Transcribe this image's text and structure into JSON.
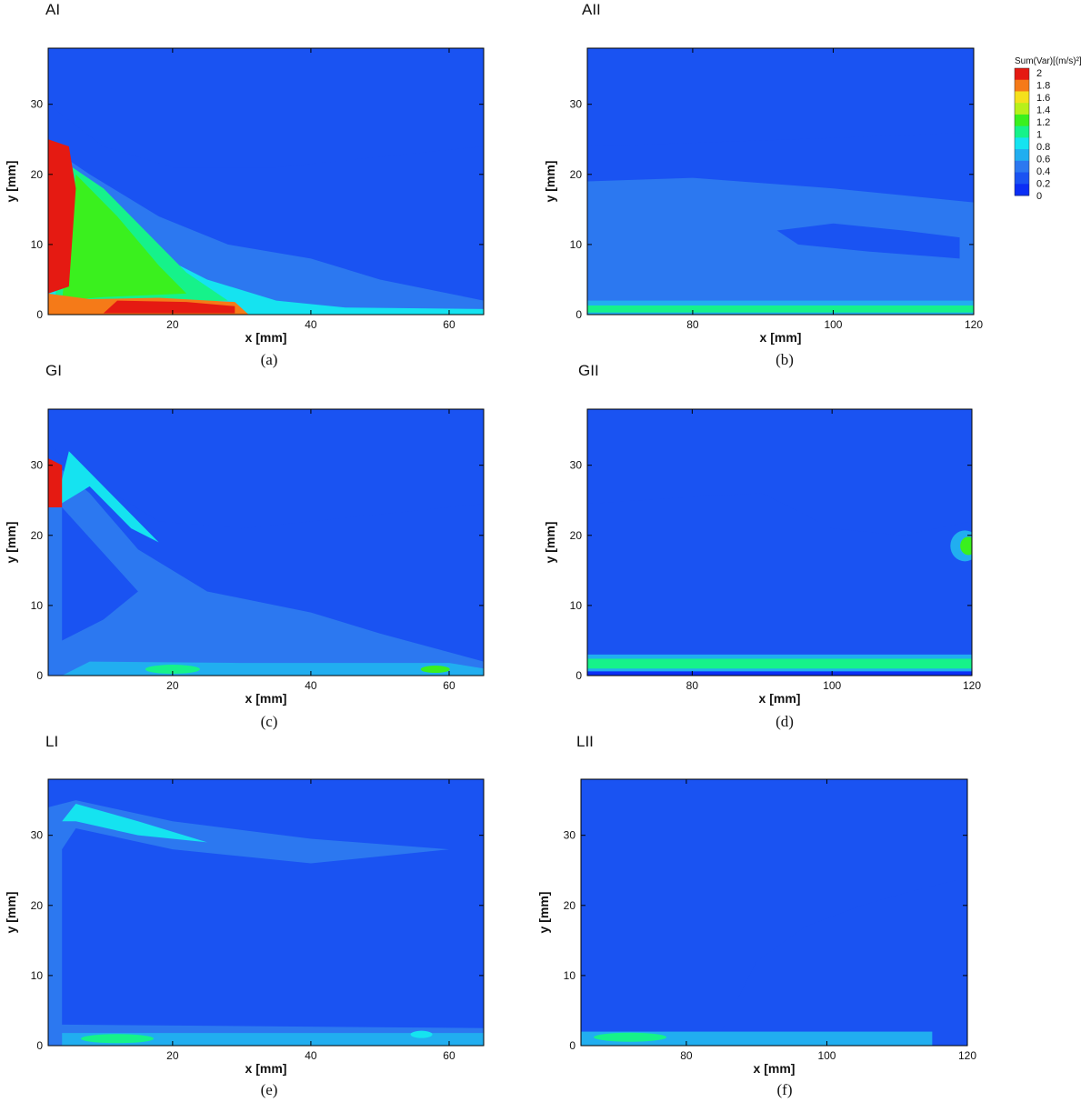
{
  "legend": {
    "title": "Sum(Var)[(m/s)²]",
    "ticks": [
      "2",
      "1.8",
      "1.6",
      "1.4",
      "1.2",
      "1",
      "0.8",
      "0.6",
      "0.4",
      "0.2",
      "0"
    ],
    "colors": [
      "#0b2ef5",
      "#1a53f2",
      "#2c78f0",
      "#21aef0",
      "#15e3f0",
      "#16f28a",
      "#3af01e",
      "#b8f01a",
      "#f5e01c",
      "#f57a18",
      "#e51a12"
    ]
  },
  "panels": [
    {
      "title": "AI",
      "caption": "(a)"
    },
    {
      "title": "AII",
      "caption": "(b)"
    },
    {
      "title": "GI",
      "caption": "(c)"
    },
    {
      "title": "GII",
      "caption": "(d)"
    },
    {
      "title": "LI",
      "caption": "(e)"
    },
    {
      "title": "LII",
      "caption": "(f)"
    }
  ],
  "chart_data": [
    {
      "type": "heatmap",
      "title": "AI",
      "xlabel": "x [mm]",
      "ylabel": "y [mm]",
      "xlim": [
        2,
        65
      ],
      "ylim": [
        0,
        38
      ],
      "xticks": [
        20,
        40,
        60
      ],
      "yticks": [
        0,
        10,
        20,
        30
      ],
      "colorbar_label": "Sum(Var)[(m/s)²]",
      "colorbar_range": [
        0,
        2
      ],
      "features": [
        {
          "region": "near-nozzle jet core, x 2-6 mm, y 3-25 mm",
          "value": 2.0
        },
        {
          "region": "near-wall layer, x 10-30 mm, y 0-2 mm",
          "value": 2.0
        },
        {
          "region": "triangular mixing zone, x 5-25 mm, y 3-20 mm",
          "value": 1.2
        },
        {
          "region": "outer shear zone, x 20-50 mm, y 2-15 mm",
          "value": 0.6
        },
        {
          "region": "far field, y > 25 mm",
          "value": 0.1
        }
      ]
    },
    {
      "type": "heatmap",
      "title": "AII",
      "xlabel": "x [mm]",
      "ylabel": "y [mm]",
      "xlim": [
        65,
        120
      ],
      "ylim": [
        0,
        38
      ],
      "xticks": [
        80,
        100,
        120
      ],
      "yticks": [
        0,
        10,
        20,
        30
      ],
      "colorbar_range": [
        0,
        2
      ],
      "features": [
        {
          "region": "wall layer, y 0-2 mm",
          "value": 0.8
        },
        {
          "region": "mid layer, y 2-20 mm",
          "value": 0.35
        },
        {
          "region": "upper region, y > 25 mm",
          "value": 0.1
        }
      ]
    },
    {
      "type": "heatmap",
      "title": "GI",
      "xlabel": "x [mm]",
      "ylabel": "y [mm]",
      "xlim": [
        2,
        65
      ],
      "ylim": [
        0,
        38
      ],
      "xticks": [
        20,
        40,
        60
      ],
      "yticks": [
        0,
        10,
        20,
        30
      ],
      "colorbar_range": [
        0,
        2
      ],
      "features": [
        {
          "region": "nozzle lip, x 2-4 mm, y 24-31 mm",
          "value": 2.0
        },
        {
          "region": "upper shear band, x 4-18 mm, y 18-32 mm",
          "value": 0.9
        },
        {
          "region": "wall layer, x 5-65 mm, y 0-2 mm",
          "value": 0.9
        },
        {
          "region": "mixing region, x 10-45 mm, y 2-12 mm",
          "value": 0.5
        },
        {
          "region": "far field, y > 25 mm",
          "value": 0.1
        }
      ]
    },
    {
      "type": "heatmap",
      "title": "GII",
      "xlabel": "x [mm]",
      "ylabel": "y [mm]",
      "xlim": [
        65,
        120
      ],
      "ylim": [
        0,
        38
      ],
      "xticks": [
        80,
        100,
        120
      ],
      "yticks": [
        0,
        10,
        20,
        30
      ],
      "colorbar_range": [
        0,
        2
      ],
      "features": [
        {
          "region": "wall layer, y 0-3 mm",
          "value": 1.1
        },
        {
          "region": "spot near x 118 mm, y 18 mm",
          "value": 1.2
        },
        {
          "region": "mid layer, y 3-24 mm",
          "value": 0.25
        },
        {
          "region": "upper region, y > 25 mm",
          "value": 0.1
        }
      ]
    },
    {
      "type": "heatmap",
      "title": "LI",
      "xlabel": "x [mm]",
      "ylabel": "y [mm]",
      "xlim": [
        2,
        65
      ],
      "ylim": [
        0,
        38
      ],
      "xticks": [
        20,
        40,
        60
      ],
      "yticks": [
        0,
        10,
        20,
        30
      ],
      "colorbar_range": [
        0,
        2
      ],
      "features": [
        {
          "region": "upper shear layer, x 3-60 mm, y 27-35 mm",
          "value": 0.7
        },
        {
          "region": "left wall band, x 2-4 mm, y 0-33 mm",
          "value": 0.3
        },
        {
          "region": "bottom wall layer, y 0-2.5 mm",
          "value": 0.9
        },
        {
          "region": "interior",
          "value": 0.1
        }
      ]
    },
    {
      "type": "heatmap",
      "title": "LII",
      "xlabel": "x [mm]",
      "ylabel": "y [mm]",
      "xlim": [
        65,
        120
      ],
      "ylim": [
        0,
        38
      ],
      "xticks": [
        80,
        100,
        120
      ],
      "yticks": [
        0,
        10,
        20,
        30
      ],
      "colorbar_range": [
        0,
        2
      ],
      "features": [
        {
          "region": "wall layer, x 65-80 mm, y 0-2 mm",
          "value": 1.0
        },
        {
          "region": "wall layer, x 80-115 mm, y 0-2 mm",
          "value": 0.55
        },
        {
          "region": "diffuse region, x 90-120 mm, y 2-25 mm",
          "value": 0.2
        },
        {
          "region": "background",
          "value": 0.1
        }
      ]
    }
  ]
}
